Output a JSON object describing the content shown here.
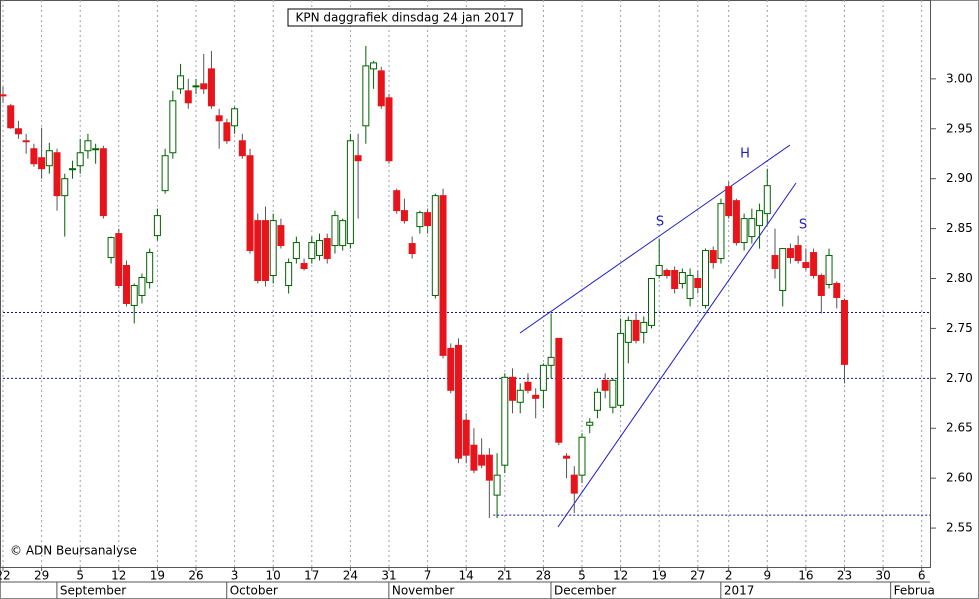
{
  "chart_data": {
    "type": "candlestick",
    "title": "KPN daggrafiek dinsdag 24 jan 2017",
    "credit": "© ADN Beursanalyse",
    "categories": [
      "22",
      null,
      null,
      null,
      null,
      "29",
      null,
      null,
      null,
      null,
      "5",
      null,
      null,
      null,
      null,
      "12",
      null,
      null,
      null,
      null,
      "19",
      null,
      null,
      null,
      null,
      "26",
      null,
      null,
      null,
      null,
      "3",
      null,
      null,
      null,
      null,
      "10",
      null,
      null,
      null,
      null,
      "17",
      null,
      null,
      null,
      null,
      "24",
      null,
      null,
      null,
      null,
      "31",
      null,
      null,
      null,
      null,
      "7",
      null,
      null,
      null,
      null,
      "14",
      null,
      null,
      null,
      null,
      "21",
      null,
      null,
      null,
      null,
      "28",
      null,
      null,
      null,
      null,
      "5",
      null,
      null,
      null,
      null,
      "12",
      null,
      null,
      null,
      null,
      "19",
      null,
      null,
      null,
      null,
      "27",
      null,
      null,
      null,
      "2",
      null,
      null,
      null,
      null,
      "9",
      null,
      null,
      null,
      null,
      "16",
      null,
      null,
      null,
      null,
      "23",
      null,
      null,
      null,
      null,
      "30",
      null,
      null,
      null,
      null,
      "6"
    ],
    "months": [
      "September",
      "October",
      "November",
      "December",
      "2017",
      "Februa"
    ],
    "open": [
      2.984,
      2.973,
      2.95,
      2.938,
      2.93,
      2.921,
      2.913,
      2.926,
      2.883,
      2.91,
      2.913,
      2.928,
      2.93,
      2.93,
      2.821,
      2.845,
      2.813,
      2.773,
      2.783,
      2.796,
      2.843,
      2.888,
      2.926,
      2.99,
      2.988,
      2.993,
      2.995,
      3.01,
      2.963,
      2.956,
      2.953,
      2.938,
      2.923,
      2.858,
      2.858,
      2.803,
      2.853,
      2.793,
      2.82,
      2.815,
      2.82,
      2.823,
      2.84,
      2.833,
      2.833,
      2.835,
      2.923,
      2.953,
      3.01,
      3.008,
      2.981,
      2.888,
      2.868,
      2.835,
      2.852,
      2.866,
      2.783,
      2.883,
      2.73,
      2.733,
      2.658,
      2.633,
      2.623,
      2.623,
      2.583,
      2.613,
      2.701,
      2.676,
      2.696,
      2.683,
      2.688,
      2.713,
      2.74,
      2.622,
      2.603,
      2.603,
      2.653,
      2.668,
      2.698,
      2.671,
      2.673,
      2.736,
      2.758,
      2.746,
      2.753,
      2.803,
      2.808,
      2.808,
      2.795,
      2.78,
      2.8,
      2.773,
      2.828,
      2.82,
      2.892,
      2.878,
      2.836,
      2.842,
      2.853,
      2.865,
      2.823,
      2.788,
      2.83,
      2.833,
      2.816,
      2.826,
      2.803,
      2.794,
      2.795,
      2.778,
      null,
      null,
      null,
      null,
      null,
      null,
      null,
      null,
      null,
      null
    ],
    "high": [
      2.992,
      2.975,
      2.958,
      2.945,
      2.935,
      2.951,
      2.936,
      2.93,
      2.905,
      2.918,
      2.94,
      2.945,
      2.935,
      2.933,
      2.842,
      2.85,
      2.818,
      2.795,
      2.805,
      2.83,
      2.87,
      2.93,
      2.988,
      3.015,
      3.0,
      3.0,
      3.025,
      3.028,
      2.97,
      2.96,
      2.972,
      2.945,
      2.93,
      2.865,
      2.872,
      2.865,
      2.86,
      2.82,
      2.842,
      2.82,
      2.842,
      2.845,
      2.845,
      2.868,
      2.86,
      2.945,
      2.945,
      3.033,
      3.018,
      3.012,
      2.985,
      2.89,
      2.88,
      2.842,
      2.868,
      2.87,
      2.885,
      2.89,
      2.735,
      2.74,
      2.665,
      2.65,
      2.64,
      2.63,
      2.625,
      2.705,
      2.71,
      2.695,
      2.705,
      2.69,
      2.715,
      2.765,
      2.74,
      2.625,
      2.612,
      2.645,
      2.66,
      2.69,
      2.705,
      2.7,
      2.76,
      2.762,
      2.765,
      2.762,
      2.8,
      2.84,
      2.81,
      2.812,
      2.81,
      2.81,
      2.808,
      2.83,
      2.832,
      2.88,
      2.897,
      2.88,
      2.865,
      2.87,
      2.875,
      2.91,
      2.85,
      2.83,
      2.835,
      2.843,
      2.83,
      2.83,
      2.805,
      2.83,
      2.797,
      2.78,
      null,
      null,
      null,
      null,
      null,
      null,
      null,
      null,
      null,
      null
    ],
    "low": [
      2.976,
      2.95,
      2.94,
      2.925,
      2.912,
      2.9,
      2.905,
      2.868,
      2.842,
      2.9,
      2.905,
      2.92,
      2.915,
      2.86,
      2.815,
      2.79,
      2.772,
      2.755,
      2.775,
      2.79,
      2.838,
      2.885,
      2.92,
      2.985,
      2.97,
      2.985,
      2.985,
      2.97,
      2.93,
      2.935,
      2.945,
      2.92,
      2.825,
      2.795,
      2.792,
      2.795,
      2.83,
      2.785,
      2.815,
      2.808,
      2.815,
      2.818,
      2.815,
      2.825,
      2.828,
      2.83,
      2.86,
      2.935,
      2.99,
      2.97,
      2.915,
      2.865,
      2.855,
      2.82,
      2.845,
      2.845,
      2.78,
      2.72,
      2.685,
      2.615,
      2.615,
      2.605,
      2.61,
      2.56,
      2.56,
      2.605,
      2.665,
      2.665,
      2.685,
      2.66,
      2.67,
      2.7,
      2.633,
      2.6,
      2.565,
      2.595,
      2.645,
      2.66,
      2.68,
      2.665,
      2.67,
      2.715,
      2.735,
      2.735,
      2.75,
      2.8,
      2.8,
      2.785,
      2.79,
      2.772,
      2.785,
      2.77,
      2.81,
      2.815,
      2.86,
      2.833,
      2.828,
      2.835,
      2.83,
      2.855,
      2.8,
      2.772,
      2.815,
      2.815,
      2.808,
      2.8,
      2.765,
      2.79,
      2.77,
      2.695,
      null,
      null,
      null,
      null,
      null,
      null,
      null,
      null,
      null,
      null
    ],
    "close": [
      2.983,
      2.951,
      2.945,
      2.937,
      2.915,
      2.91,
      2.928,
      2.883,
      2.9,
      2.91,
      2.926,
      2.938,
      2.93,
      2.863,
      2.841,
      2.793,
      2.775,
      2.793,
      2.801,
      2.826,
      2.863,
      2.923,
      2.978,
      3.003,
      2.976,
      2.993,
      2.99,
      2.973,
      2.958,
      2.938,
      2.97,
      2.923,
      2.828,
      2.798,
      2.798,
      2.858,
      2.833,
      2.816,
      2.836,
      2.81,
      2.836,
      2.838,
      2.82,
      2.863,
      2.858,
      2.938,
      2.918,
      3.013,
      3.016,
      2.973,
      2.918,
      2.868,
      2.858,
      2.825,
      2.866,
      2.853,
      2.883,
      2.723,
      2.688,
      2.62,
      2.623,
      2.608,
      2.613,
      2.598,
      2.603,
      2.701,
      2.678,
      2.688,
      2.688,
      2.68,
      2.713,
      2.721,
      2.636,
      2.62,
      2.585,
      2.641,
      2.656,
      2.686,
      2.688,
      2.698,
      2.745,
      2.758,
      2.738,
      2.756,
      2.8,
      2.813,
      2.803,
      2.79,
      2.806,
      2.803,
      2.791,
      2.828,
      2.816,
      2.875,
      2.863,
      2.836,
      2.86,
      2.86,
      2.868,
      2.893,
      2.81,
      2.83,
      2.821,
      2.818,
      2.811,
      2.803,
      2.783,
      2.823,
      2.781,
      2.714,
      null,
      null,
      null,
      null,
      null,
      null,
      null,
      null,
      null,
      null
    ],
    "up_color": "#006400",
    "down_color": "#e8141c",
    "levels": [
      2.766,
      2.7,
      2.563
    ],
    "level_color": "#1010a0",
    "annotations": [
      "S",
      "H",
      "S"
    ],
    "annotation_color": "#2020c0",
    "ylim": [
      2.511,
      3.079
    ],
    "yticks": [
      2.55,
      {
        "value": 2.6,
        "label": "2.60"
      },
      2.65,
      {
        "value": 2.7,
        "label": "2.70"
      },
      2.75,
      {
        "value": 2.8,
        "label": "2.80"
      },
      2.85,
      {
        "value": 2.9,
        "label": "2.90"
      },
      2.95,
      {
        "value": 3.0,
        "label": "3.00"
      }
    ],
    "grid": true
  }
}
